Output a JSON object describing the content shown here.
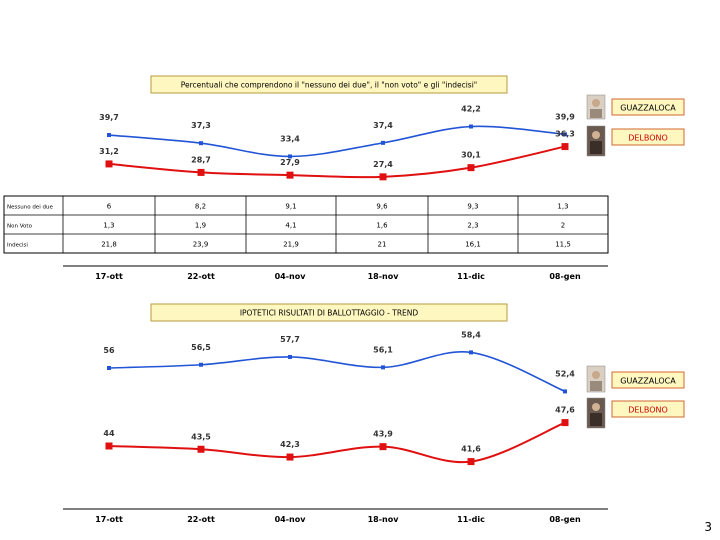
{
  "page_number": "3",
  "candidates": {
    "guazzaloca": "GUAZZALOCA",
    "delbono": "DELBONO"
  },
  "colors": {
    "blue": "#2255d6",
    "red": "#e01010",
    "title_box_bg": "#fff7c0",
    "title_box_border": "#b89b40",
    "cand_box_border": "#d06a30"
  },
  "icons": {
    "portrait": "person-photo-icon"
  },
  "chart_data": [
    {
      "type": "line",
      "title": "Percentuali che comprendono il \"nessuno dei due\", il \"non voto\" e gli \"indecisi\"",
      "categories": [
        "17-ott",
        "22-ott",
        "04-nov",
        "18-nov",
        "11-dic",
        "08-gen"
      ],
      "series": [
        {
          "name": "GUAZZALOCA",
          "color": "#2255d6",
          "values": [
            39.7,
            37.3,
            33.4,
            37.4,
            42.2,
            39.9
          ],
          "labels": [
            "39,7",
            "37,3",
            "33,4",
            "37,4",
            "42,2",
            "39,9"
          ]
        },
        {
          "name": "DELBONO",
          "color": "#e01010",
          "values": [
            31.2,
            28.7,
            27.9,
            27.4,
            30.1,
            36.3
          ],
          "labels": [
            "31,2",
            "28,7",
            "27,9",
            "27,4",
            "30,1",
            "36,3"
          ]
        }
      ],
      "table": {
        "rows": [
          {
            "header": "Nessuno dei due",
            "values": [
              "6",
              "8,2",
              "9,1",
              "9,6",
              "9,3",
              "1,3"
            ]
          },
          {
            "header": "Non Voto",
            "values": [
              "1,3",
              "1,9",
              "4,1",
              "1,6",
              "2,3",
              "2"
            ]
          },
          {
            "header": "Indecisi",
            "values": [
              "21,8",
              "23,9",
              "21,9",
              "21",
              "16,1",
              "11,5"
            ]
          }
        ]
      },
      "ylim": [
        25,
        45
      ]
    },
    {
      "type": "line",
      "title": "IPOTETICI RISULTATI DI BALLOTTAGGIO - TREND",
      "categories": [
        "17-ott",
        "22-ott",
        "04-nov",
        "18-nov",
        "11-dic",
        "08-gen"
      ],
      "series": [
        {
          "name": "GUAZZALOCA",
          "color": "#2255d6",
          "values": [
            56,
            56.5,
            57.7,
            56.1,
            58.4,
            52.4
          ],
          "labels": [
            "56",
            "56,5",
            "57,7",
            "56,1",
            "58,4",
            "52,4"
          ]
        },
        {
          "name": "DELBONO",
          "color": "#e01010",
          "values": [
            44,
            43.5,
            42.3,
            43.9,
            41.6,
            47.6
          ],
          "labels": [
            "44",
            "43,5",
            "42,3",
            "43,9",
            "41,6",
            "47,6"
          ]
        }
      ],
      "ylim": [
        40,
        60
      ]
    }
  ]
}
